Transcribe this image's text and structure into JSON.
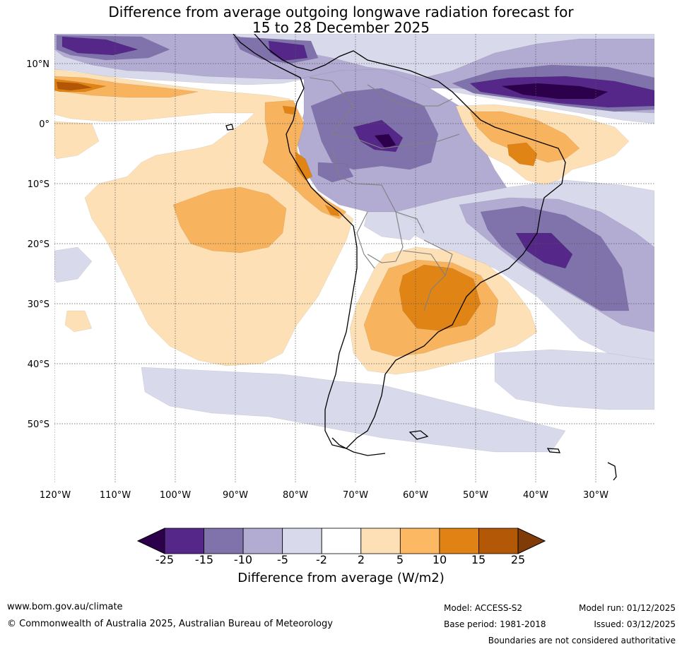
{
  "title": {
    "line1": "Difference from average outgoing longwave radiation forecast for",
    "line2": "15 to 28 December 2025"
  },
  "map": {
    "latitude_labels": [
      "10°N",
      "0°",
      "10°S",
      "20°S",
      "30°S",
      "40°S",
      "50°S"
    ],
    "longitude_labels": [
      "120°W",
      "110°W",
      "100°W",
      "90°W",
      "80°W",
      "70°W",
      "60°W",
      "50°W",
      "40°W",
      "30°W"
    ],
    "colors": {
      "pos_2_5": "#fde0b5",
      "pos_5_10": "#f8b35e",
      "pos_10_15": "#e08416",
      "pos_15_25": "#b35706",
      "neg_2_5": "#d8d9ea",
      "neg_5_10": "#b2abd2",
      "neg_10_15": "#8073ac",
      "neg_15_25": "#542788",
      "neg_lt_25": "#2d004b",
      "coast": "#000000",
      "border": "#808080"
    }
  },
  "colorbar": {
    "ticks": [
      "-25",
      "-15",
      "-10",
      "-5",
      "-2",
      "2",
      "5",
      "10",
      "15",
      "25"
    ],
    "colors": [
      "#542788",
      "#8073ac",
      "#b2abd2",
      "#d8daeb",
      "#ffffff",
      "#fee0b6",
      "#fdb863",
      "#e08214",
      "#b35806"
    ],
    "low_extend_color": "#2d004b",
    "high_extend_color": "#7f3b08",
    "label": "Difference from average (W/m2)"
  },
  "footer": {
    "website": "www.bom.gov.au/climate",
    "copyright": "© Commonwealth of Australia 2025, Australian Bureau of Meteorology",
    "model": "Model: ACCESS-S2",
    "base_period": "Base period: 1981-2018",
    "model_run": "Model run: 01/12/2025",
    "issued": "Issued: 03/12/2025",
    "disclaimer": "Boundaries are not considered authoritative"
  }
}
